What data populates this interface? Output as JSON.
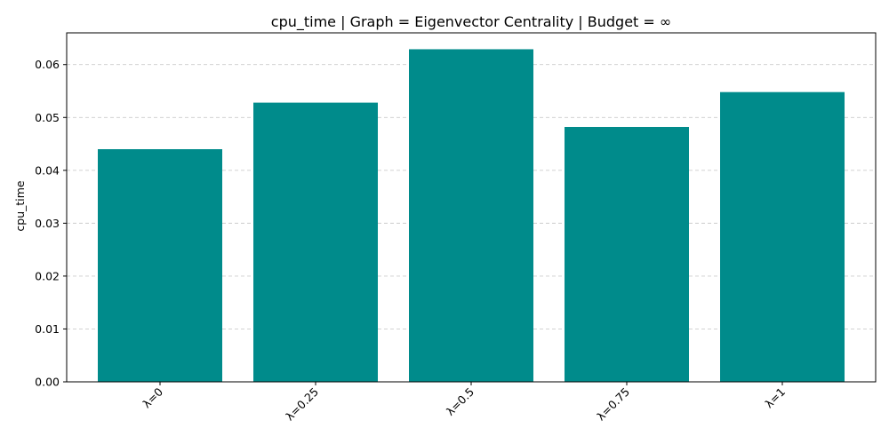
{
  "chart_data": {
    "type": "bar",
    "title": "cpu_time | Graph = Eigenvector Centrality | Budget = ∞",
    "xlabel": "",
    "ylabel": "cpu_time",
    "categories": [
      "λ=0",
      "λ=0.25",
      "λ=0.5",
      "λ=0.75",
      "λ=1"
    ],
    "values": [
      0.044,
      0.0528,
      0.0629,
      0.0482,
      0.0548
    ],
    "ylim": [
      0,
      0.066
    ],
    "yticks": [
      0.0,
      0.01,
      0.02,
      0.03,
      0.04,
      0.05,
      0.06
    ],
    "ytick_labels": [
      "0.00",
      "0.01",
      "0.02",
      "0.03",
      "0.04",
      "0.05",
      "0.06"
    ],
    "grid": "y-axis dashed",
    "bar_color": "#008b8b",
    "x_tick_rotation": "45 degrees"
  }
}
